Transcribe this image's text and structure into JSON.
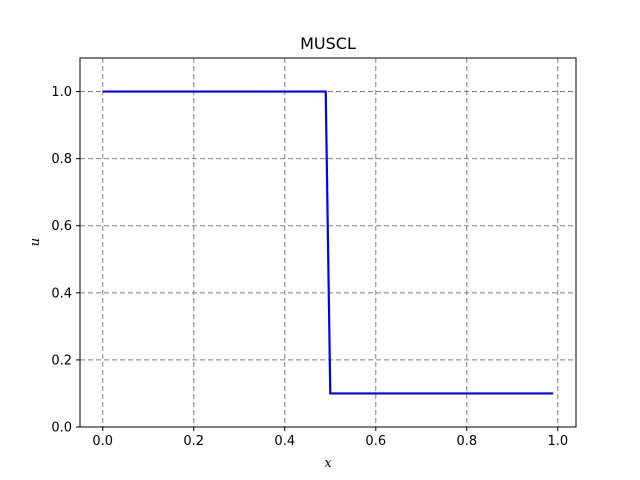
{
  "chart_data": {
    "type": "line",
    "title": "MUSCL",
    "xlabel": "x",
    "ylabel": "u",
    "xlim": [
      -0.05,
      1.04
    ],
    "ylim": [
      0.0,
      1.1
    ],
    "grid": true,
    "xticks": [
      0.0,
      0.2,
      0.4,
      0.6,
      0.8,
      1.0
    ],
    "xtick_labels": [
      "0.0",
      "0.2",
      "0.4",
      "0.6",
      "0.8",
      "1.0"
    ],
    "yticks": [
      0.0,
      0.2,
      0.4,
      0.6,
      0.8,
      1.0
    ],
    "ytick_labels": [
      "0.0",
      "0.2",
      "0.4",
      "0.6",
      "0.8",
      "1.0"
    ],
    "series": [
      {
        "name": "u",
        "color": "#0000ff",
        "x": [
          0.0,
          0.49,
          0.495,
          0.5,
          0.99
        ],
        "y": [
          1.0,
          1.0,
          0.55,
          0.1,
          0.1
        ]
      }
    ]
  }
}
